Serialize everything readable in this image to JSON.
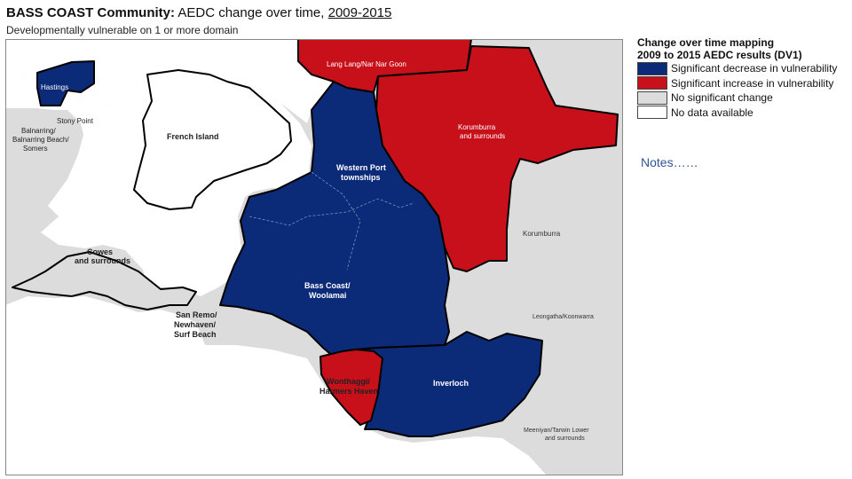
{
  "header": {
    "title_bold": "BASS COAST Community:",
    "title_rest": " AEDC change over time, ",
    "title_years": "2009-2015",
    "subtitle": "Developmentally vulnerable on 1 or more domain"
  },
  "legend": {
    "title_line1": "Change over time mapping",
    "title_line2": "2009 to 2015 AEDC results (DV1)",
    "items": [
      {
        "label": "Significant decrease in vulnerability",
        "color": "#0b2a78"
      },
      {
        "label": "Significant increase in vulnerability",
        "color": "#c8101b"
      },
      {
        "label": "No significant change",
        "color": "#dcdcdc"
      },
      {
        "label": "No data available",
        "color": "#ffffff"
      }
    ]
  },
  "notes": "Notes……",
  "map": {
    "colors": {
      "decrease": "#0b2a78",
      "increase": "#c8101b",
      "no_change": "#dcdcdc",
      "no_data": "#ffffff",
      "border": "#000000"
    },
    "labels": {
      "hastings": "Hastings",
      "lang_lang": "Lang Lang/Nar Nar Goon",
      "korumburra_top": "Korumburra",
      "korumburra_top2": "and surrounds",
      "stony_point": "Stony Point",
      "balnarring_1": "Balnarring/",
      "balnarring_2": "Balnarring Beach/",
      "balnarring_3": "Somers",
      "french_island": "French Island",
      "western_port_1": "Western Port",
      "western_port_2": "townships",
      "korumburra": "Korumburra",
      "cowes_1": "Cowes",
      "cowes_2": "and surrounds",
      "bass_coast_1": "Bass Coast/",
      "bass_coast_2": "Woolamai",
      "san_remo_1": "San Remo/",
      "san_remo_2": "Newhaven/",
      "san_remo_3": "Surf Beach",
      "leongatha": "Leongatha/Koonwarra",
      "wonthaggi_1": "Wonthaggi/",
      "wonthaggi_2": "Harmers Haven",
      "inverloch": "Inverloch",
      "meeniyan_1": "Meeniyan/Tarwin Lower",
      "meeniyan_2": "and surrounds"
    }
  }
}
